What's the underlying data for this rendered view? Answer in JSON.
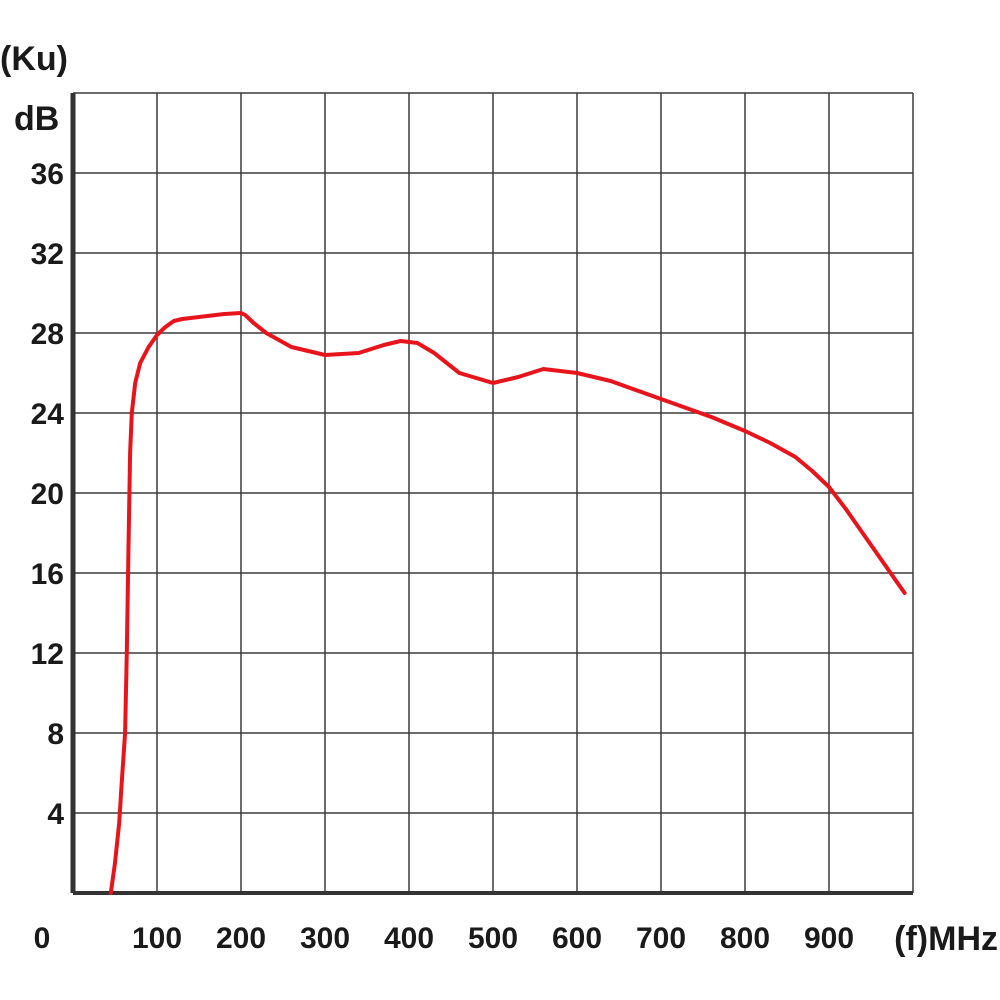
{
  "chart_data": {
    "type": "line",
    "title": "",
    "ylabel_top": "(Ku)",
    "ylabel_unit": "dB",
    "xlabel": "(f)MHz",
    "x_zero_label": "0",
    "xlim": [
      0,
      1000
    ],
    "ylim": [
      0,
      40
    ],
    "grid": true,
    "x_ticks": [
      100,
      200,
      300,
      400,
      500,
      600,
      700,
      800,
      900
    ],
    "x_tick_labels": [
      "100",
      "200",
      "300",
      "400",
      "500",
      "600",
      "700",
      "800",
      "900"
    ],
    "y_ticks": [
      4,
      8,
      12,
      16,
      20,
      24,
      28,
      32,
      36
    ],
    "y_tick_labels": [
      "4",
      "8",
      "12",
      "16",
      "20",
      "24",
      "28",
      "32",
      "36"
    ],
    "series": [
      {
        "color": "#e8141b",
        "x": [
          45,
          50,
          55,
          58,
          62,
          64,
          66,
          68,
          70,
          74,
          80,
          90,
          100,
          110,
          120,
          130,
          140,
          160,
          180,
          200,
          205,
          215,
          230,
          260,
          300,
          340,
          370,
          390,
          410,
          430,
          460,
          500,
          530,
          560,
          600,
          640,
          700,
          760,
          800,
          830,
          860,
          880,
          900,
          920,
          940,
          960,
          990
        ],
        "y": [
          0,
          1.5,
          3.5,
          5.5,
          8,
          12,
          17,
          22,
          24,
          25.5,
          26.5,
          27.3,
          27.9,
          28.3,
          28.6,
          28.7,
          28.75,
          28.85,
          28.95,
          29.0,
          28.9,
          28.5,
          28.0,
          27.3,
          26.9,
          27.0,
          27.4,
          27.6,
          27.5,
          27.0,
          26.0,
          25.5,
          25.8,
          26.2,
          26.0,
          25.6,
          24.7,
          23.8,
          23.1,
          22.5,
          21.8,
          21.1,
          20.3,
          19.2,
          18.0,
          16.8,
          15.0
        ]
      }
    ]
  }
}
